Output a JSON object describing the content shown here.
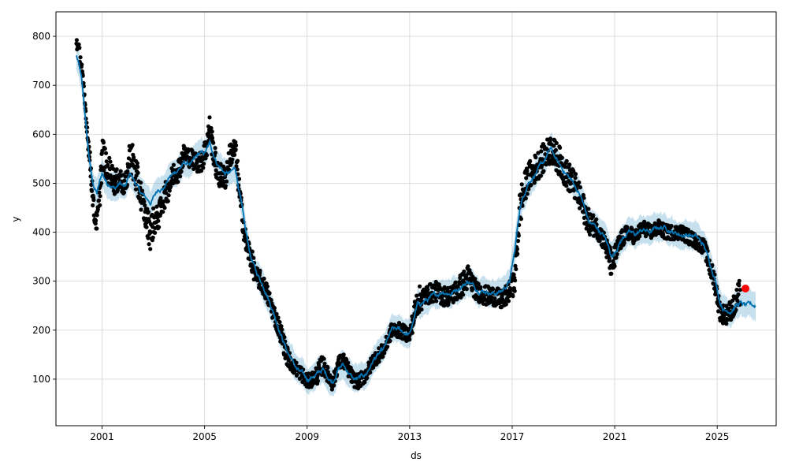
{
  "chart_data": {
    "type": "line",
    "title": "",
    "xlabel": "ds",
    "ylabel": "y",
    "xlim": [
      1999.2,
      2027.3
    ],
    "ylim": [
      5,
      850
    ],
    "grid": true,
    "x_ticks": [
      2001,
      2005,
      2009,
      2013,
      2017,
      2021,
      2025
    ],
    "x_tick_labels": [
      "2001",
      "2005",
      "2009",
      "2013",
      "2017",
      "2021",
      "2025"
    ],
    "y_ticks": [
      100,
      200,
      300,
      400,
      500,
      600,
      700,
      800
    ],
    "y_tick_labels": [
      "100",
      "200",
      "300",
      "400",
      "500",
      "600",
      "700",
      "800"
    ],
    "colors": {
      "observed": "#000000",
      "forecast": "#0072b2",
      "interval": "#0072b2",
      "highlight": "#ff0000"
    },
    "series": [
      {
        "kind": "observed_points",
        "x": [
          2000.0,
          2000.1,
          2000.2,
          2000.3,
          2000.4,
          2000.5,
          2000.6,
          2000.7,
          2000.8,
          2000.9,
          2001.0,
          2001.1,
          2001.2,
          2001.3,
          2001.5,
          2001.7,
          2001.9,
          2002.1,
          2002.3,
          2002.5,
          2002.7,
          2002.9,
          2003.0,
          2003.2,
          2003.4,
          2003.6,
          2003.8,
          2004.0,
          2004.2,
          2004.5,
          2004.8,
          2005.0,
          2005.2,
          2005.5,
          2005.8,
          2006.0,
          2006.2,
          2006.4,
          2006.6,
          2006.8,
          2007.0,
          2007.2,
          2007.4,
          2007.6,
          2007.8,
          2008.0,
          2008.2,
          2008.4,
          2008.6,
          2008.8,
          2009.0,
          2009.2,
          2009.4,
          2009.6,
          2009.8,
          2010.0,
          2010.2,
          2010.4,
          2010.6,
          2010.8,
          2011.0,
          2011.3,
          2011.6,
          2012.0,
          2012.3,
          2012.6,
          2013.0,
          2013.3,
          2013.6,
          2014.0,
          2014.3,
          2014.6,
          2015.0,
          2015.3,
          2015.6,
          2016.0,
          2016.3,
          2016.6,
          2016.9,
          2017.1,
          2017.3,
          2017.6,
          2017.9,
          2018.2,
          2018.5,
          2018.8,
          2019.1,
          2019.4,
          2019.7,
          2020.0,
          2020.3,
          2020.6,
          2020.9,
          2021.2,
          2021.5,
          2021.8,
          2022.1,
          2022.4,
          2022.7,
          2023.0,
          2023.3,
          2023.6,
          2023.9,
          2024.2,
          2024.5,
          2024.7,
          2024.9,
          2025.1,
          2025.3,
          2025.5,
          2025.7,
          2025.9
        ],
        "y": [
          790,
          770,
          740,
          680,
          620,
          560,
          500,
          430,
          420,
          470,
          560,
          550,
          520,
          530,
          500,
          510,
          490,
          560,
          520,
          480,
          430,
          400,
          420,
          430,
          470,
          490,
          520,
          530,
          560,
          550,
          540,
          560,
          610,
          520,
          510,
          560,
          570,
          460,
          380,
          350,
          310,
          300,
          280,
          250,
          220,
          190,
          150,
          130,
          120,
          110,
          95,
          100,
          110,
          130,
          110,
          90,
          130,
          140,
          120,
          100,
          95,
          110,
          140,
          160,
          200,
          200,
          190,
          260,
          270,
          280,
          270,
          270,
          290,
          310,
          280,
          270,
          270,
          260,
          280,
          300,
          450,
          510,
          530,
          550,
          570,
          550,
          520,
          500,
          460,
          420,
          410,
          380,
          330,
          380,
          400,
          390,
          410,
          400,
          410,
          400,
          400,
          400,
          390,
          380,
          370,
          330,
          300,
          240,
          230,
          240,
          250,
          280
        ],
        "jitter": [
          15,
          15,
          12,
          12,
          15,
          20,
          25,
          15,
          20,
          25,
          40,
          30,
          25,
          25,
          25,
          25,
          20,
          40,
          40,
          30,
          25,
          40,
          30,
          25,
          25,
          25,
          25,
          25,
          20,
          20,
          20,
          30,
          30,
          25,
          25,
          25,
          25,
          25,
          25,
          25,
          20,
          20,
          20,
          20,
          20,
          20,
          20,
          15,
          15,
          15,
          15,
          15,
          20,
          20,
          15,
          15,
          15,
          15,
          15,
          15,
          15,
          15,
          15,
          15,
          15,
          15,
          15,
          30,
          20,
          20,
          20,
          20,
          25,
          25,
          20,
          20,
          20,
          20,
          20,
          25,
          40,
          30,
          30,
          30,
          30,
          30,
          30,
          30,
          30,
          25,
          20,
          20,
          30,
          20,
          15,
          15,
          15,
          15,
          15,
          15,
          15,
          15,
          15,
          15,
          15,
          20,
          20,
          20,
          20,
          20,
          25,
          30
        ]
      },
      {
        "kind": "forecast_line",
        "x": [
          2000.0,
          2000.1,
          2000.2,
          2000.3,
          2000.4,
          2000.5,
          2000.6,
          2000.7,
          2000.8,
          2000.9,
          2001.0,
          2001.1,
          2001.2,
          2001.3,
          2001.5,
          2001.7,
          2001.9,
          2002.1,
          2002.3,
          2002.5,
          2002.7,
          2002.9,
          2003.0,
          2003.2,
          2003.4,
          2003.6,
          2003.8,
          2004.0,
          2004.2,
          2004.5,
          2004.8,
          2005.0,
          2005.2,
          2005.5,
          2005.8,
          2006.0,
          2006.2,
          2006.4,
          2006.6,
          2006.8,
          2007.0,
          2007.2,
          2007.4,
          2007.6,
          2007.8,
          2008.0,
          2008.2,
          2008.4,
          2008.6,
          2008.8,
          2009.0,
          2009.2,
          2009.4,
          2009.6,
          2009.8,
          2010.0,
          2010.2,
          2010.4,
          2010.6,
          2010.8,
          2011.0,
          2011.3,
          2011.6,
          2012.0,
          2012.3,
          2012.6,
          2013.0,
          2013.3,
          2013.6,
          2014.0,
          2014.3,
          2014.6,
          2015.0,
          2015.3,
          2015.6,
          2016.0,
          2016.3,
          2016.6,
          2016.9,
          2017.1,
          2017.3,
          2017.6,
          2017.9,
          2018.2,
          2018.5,
          2018.8,
          2019.1,
          2019.4,
          2019.7,
          2020.0,
          2020.3,
          2020.6,
          2020.9,
          2021.2,
          2021.5,
          2021.8,
          2022.1,
          2022.4,
          2022.7,
          2023.0,
          2023.3,
          2023.6,
          2023.9,
          2024.2,
          2024.5,
          2024.7,
          2024.9,
          2025.1,
          2025.3,
          2025.5,
          2025.7,
          2025.9,
          2026.1,
          2026.3,
          2026.5
        ],
        "y": [
          760,
          740,
          710,
          660,
          600,
          550,
          510,
          490,
          480,
          500,
          520,
          510,
          500,
          500,
          490,
          500,
          490,
          520,
          500,
          480,
          470,
          460,
          470,
          490,
          490,
          510,
          520,
          530,
          540,
          540,
          560,
          560,
          580,
          540,
          520,
          520,
          530,
          470,
          400,
          350,
          320,
          300,
          280,
          250,
          220,
          190,
          160,
          140,
          120,
          110,
          100,
          105,
          110,
          120,
          105,
          95,
          120,
          130,
          115,
          100,
          100,
          110,
          140,
          160,
          200,
          200,
          190,
          250,
          260,
          270,
          280,
          275,
          290,
          300,
          285,
          280,
          275,
          280,
          300,
          360,
          450,
          500,
          520,
          540,
          570,
          540,
          520,
          500,
          470,
          420,
          410,
          390,
          350,
          380,
          400,
          395,
          405,
          400,
          410,
          410,
          400,
          395,
          395,
          390,
          370,
          340,
          310,
          260,
          240,
          240,
          250,
          255,
          250,
          250,
          250
        ]
      },
      {
        "kind": "uncertainty_band",
        "width": 28
      },
      {
        "kind": "highlight_point",
        "x": 2026.1,
        "y": 285
      }
    ]
  }
}
